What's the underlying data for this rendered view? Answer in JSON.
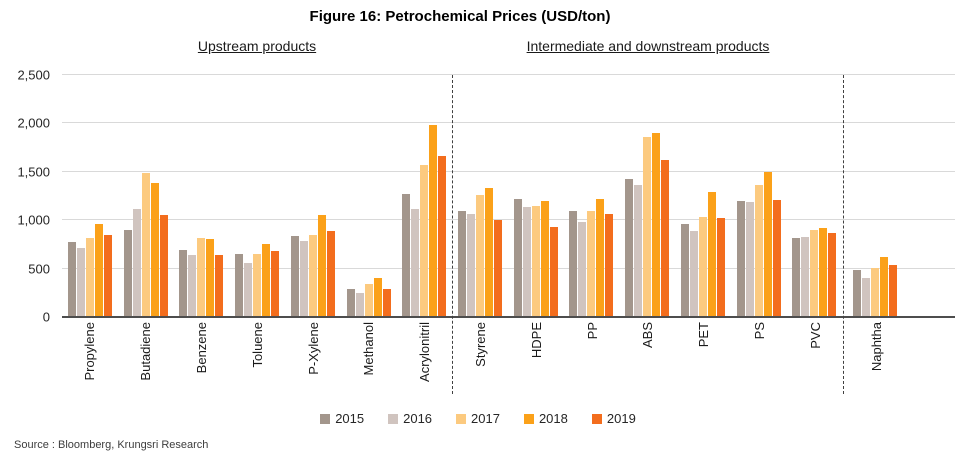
{
  "title": "Figure 16: Petrochemical Prices (USD/ton)",
  "source": "Source : Bloomberg, Krungsri Research",
  "sections": {
    "left_label": "Upstream products",
    "right_label": "Intermediate and downstream products"
  },
  "chart_data": {
    "type": "bar",
    "title": "Figure 16: Petrochemical Prices (USD/ton)",
    "ylabel": "USD/ton",
    "xlabel": "",
    "ylim": [
      0,
      2500
    ],
    "ytick_values": [
      0,
      500,
      1000,
      1500,
      2000,
      2500
    ],
    "ytick_labels": [
      "0",
      "500",
      "1,000",
      "1,500",
      "2,000",
      "2,500"
    ],
    "grid": true,
    "legend_position": "bottom",
    "section_split_after": [
      "Acrylonitril",
      "PVC"
    ],
    "categories": [
      "Propylene",
      "Butadiene",
      "Benzene",
      "Toluene",
      "P-Xylene",
      "Methanol",
      "Acrylonitril",
      "Styrene",
      "HDPE",
      "PP",
      "ABS",
      "PET",
      "PS",
      "PVC",
      "Naphtha"
    ],
    "series": [
      {
        "name": "2015",
        "color": "#a3968c",
        "values": [
          780,
          900,
          690,
          650,
          840,
          290,
          1270,
          1100,
          1220,
          1100,
          1430,
          960,
          1200,
          820,
          490
        ]
      },
      {
        "name": "2016",
        "color": "#d0c4bf",
        "values": [
          710,
          1120,
          640,
          560,
          790,
          250,
          1120,
          1060,
          1140,
          980,
          1360,
          890,
          1190,
          830,
          400
        ]
      },
      {
        "name": "2017",
        "color": "#fcca7f",
        "values": [
          820,
          1490,
          820,
          650,
          850,
          340,
          1570,
          1260,
          1150,
          1100,
          1860,
          1030,
          1360,
          900,
          510
        ]
      },
      {
        "name": "2018",
        "color": "#fba119",
        "values": [
          960,
          1380,
          810,
          750,
          1050,
          400,
          1980,
          1330,
          1200,
          1220,
          1900,
          1290,
          1500,
          920,
          620
        ]
      },
      {
        "name": "2019",
        "color": "#f36d1d",
        "values": [
          850,
          1050,
          640,
          680,
          890,
          290,
          1660,
          1000,
          930,
          1060,
          1620,
          1020,
          1210,
          870,
          540
        ]
      }
    ]
  }
}
